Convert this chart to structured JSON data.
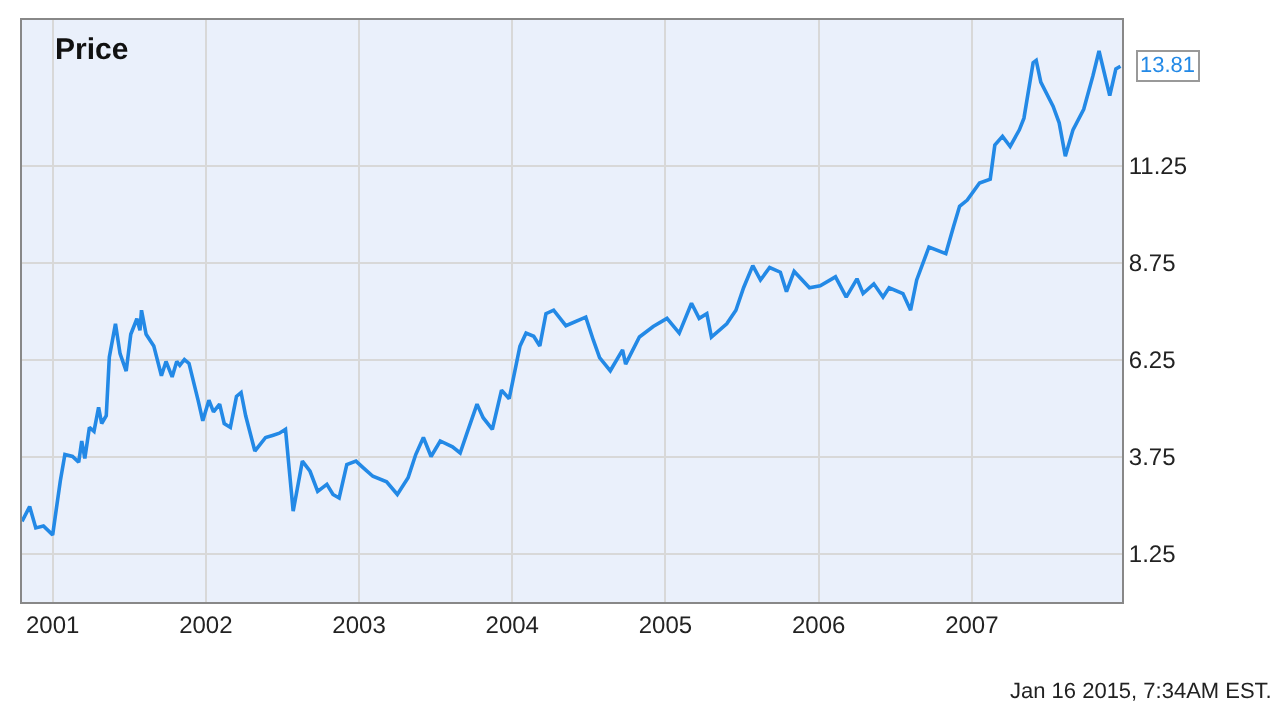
{
  "chart_data": {
    "type": "line",
    "title": "Price",
    "x": [
      2000.8,
      2000.85,
      2000.89,
      2000.94,
      2001.0,
      2001.05,
      2001.08,
      2001.13,
      2001.17,
      2001.19,
      2001.21,
      2001.24,
      2001.27,
      2001.3,
      2001.32,
      2001.35,
      2001.37,
      2001.41,
      2001.44,
      2001.48,
      2001.51,
      2001.55,
      2001.57,
      2001.58,
      2001.61,
      2001.66,
      2001.71,
      2001.74,
      2001.78,
      2001.81,
      2001.83,
      2001.86,
      2001.89,
      2001.95,
      2001.98,
      2002.02,
      2002.05,
      2002.09,
      2002.12,
      2002.16,
      2002.2,
      2002.23,
      2002.26,
      2002.32,
      2002.39,
      2002.44,
      2002.48,
      2002.52,
      2002.57,
      2002.59,
      2002.63,
      2002.68,
      2002.73,
      2002.79,
      2002.83,
      2002.87,
      2002.92,
      2002.98,
      2003.03,
      2003.09,
      2003.18,
      2003.25,
      2003.32,
      2003.37,
      2003.42,
      2003.47,
      2003.53,
      2003.61,
      2003.66,
      2003.7,
      2003.77,
      2003.81,
      2003.87,
      2003.93,
      2003.98,
      2004.05,
      2004.09,
      2004.14,
      2004.18,
      2004.22,
      2004.27,
      2004.35,
      2004.48,
      2004.53,
      2004.57,
      2004.64,
      2004.72,
      2004.74,
      2004.83,
      2004.92,
      2005.01,
      2005.09,
      2005.17,
      2005.22,
      2005.27,
      2005.3,
      2005.4,
      2005.46,
      2005.51,
      2005.57,
      2005.62,
      2005.68,
      2005.75,
      2005.79,
      2005.84,
      2005.94,
      2006.01,
      2006.11,
      2006.18,
      2006.25,
      2006.29,
      2006.36,
      2006.42,
      2006.46,
      2006.55,
      2006.6,
      2006.64,
      2006.72,
      2006.83,
      2006.88,
      2006.92,
      2006.97,
      2007.05,
      2007.12,
      2007.15,
      2007.2,
      2007.25,
      2007.31,
      2007.34,
      2007.4,
      2007.42,
      2007.45,
      2007.53,
      2007.57,
      2007.61,
      2007.66,
      2007.73,
      2007.79,
      2007.83,
      2007.9,
      2007.94,
      2007.97
    ],
    "series": [
      {
        "color": "#2389e6",
        "values": [
          2.08,
          2.46,
          1.91,
          1.96,
          1.73,
          3.12,
          3.8,
          3.75,
          3.6,
          4.15,
          3.7,
          4.5,
          4.4,
          5.02,
          4.6,
          4.8,
          6.31,
          7.17,
          6.4,
          5.95,
          6.9,
          7.3,
          7.0,
          7.52,
          6.9,
          6.6,
          5.83,
          6.2,
          5.8,
          6.2,
          6.1,
          6.25,
          6.15,
          5.19,
          4.67,
          5.2,
          4.9,
          5.1,
          4.6,
          4.5,
          5.3,
          5.4,
          4.8,
          3.89,
          4.24,
          4.3,
          4.35,
          4.45,
          2.34,
          2.77,
          3.63,
          3.37,
          2.85,
          3.03,
          2.77,
          2.68,
          3.54,
          3.63,
          3.45,
          3.24,
          3.1,
          2.77,
          3.2,
          3.8,
          4.24,
          3.75,
          4.15,
          4.0,
          3.84,
          4.3,
          5.1,
          4.75,
          4.45,
          5.46,
          5.24,
          6.59,
          6.93,
          6.85,
          6.6,
          7.43,
          7.52,
          7.12,
          7.34,
          6.74,
          6.3,
          5.96,
          6.5,
          6.13,
          6.83,
          7.1,
          7.31,
          6.93,
          7.7,
          7.31,
          7.43,
          6.83,
          7.17,
          7.52,
          8.1,
          8.67,
          8.3,
          8.62,
          8.5,
          8.0,
          8.52,
          8.1,
          8.15,
          8.38,
          7.86,
          8.33,
          7.95,
          8.2,
          7.86,
          8.1,
          7.95,
          7.52,
          8.3,
          9.15,
          8.98,
          9.67,
          10.2,
          10.36,
          10.8,
          10.9,
          11.78,
          12.0,
          11.74,
          12.17,
          12.47,
          13.9,
          13.96,
          13.4,
          12.78,
          12.35,
          11.49,
          12.17,
          12.7,
          13.56,
          14.2,
          13.05,
          13.74,
          13.81
        ]
      }
    ],
    "xlim": [
      2000.8,
      2007.98
    ],
    "xticks": [
      2001,
      2002,
      2003,
      2004,
      2005,
      2006,
      2007
    ],
    "ylim": [
      0,
      15
    ],
    "yticks": [
      1.25,
      3.75,
      6.25,
      8.75,
      11.25
    ],
    "grid": true,
    "marker": "none",
    "line_style": "solid",
    "annotations": [
      {
        "text": "13.81",
        "x": 2007.97,
        "y": 13.81
      },
      "Jan 16 2015, 7:34AM EST."
    ]
  }
}
